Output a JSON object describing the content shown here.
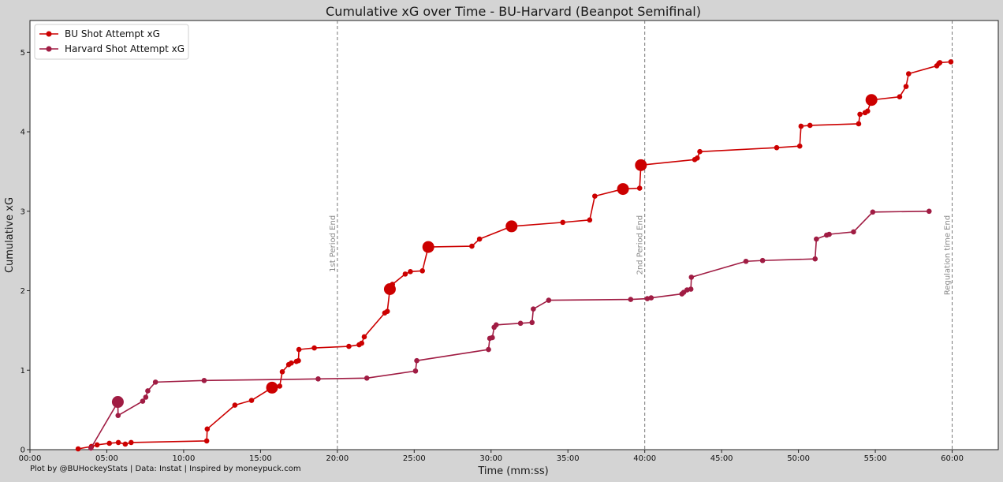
{
  "chart_data": {
    "type": "line",
    "title": "Cumulative xG over Time - BU-Harvard (Beanpot Semifinal)",
    "xlabel": "Time (mm:ss)",
    "ylabel": "Cumulative xG",
    "credit": "Plot by @BUHockeyStats | Data: Instat | Inspired by moneypuck.com",
    "xlim": [
      0,
      3780
    ],
    "ylim": [
      0,
      5.4
    ],
    "x_ticks": [
      {
        "value": 0,
        "label": "00:00"
      },
      {
        "value": 300,
        "label": "05:00"
      },
      {
        "value": 600,
        "label": "10:00"
      },
      {
        "value": 900,
        "label": "15:00"
      },
      {
        "value": 1200,
        "label": "20:00"
      },
      {
        "value": 1500,
        "label": "25:00"
      },
      {
        "value": 1800,
        "label": "30:00"
      },
      {
        "value": 2100,
        "label": "35:00"
      },
      {
        "value": 2400,
        "label": "40:00"
      },
      {
        "value": 2700,
        "label": "45:00"
      },
      {
        "value": 3000,
        "label": "50:00"
      },
      {
        "value": 3300,
        "label": "55:00"
      },
      {
        "value": 3600,
        "label": "60:00"
      }
    ],
    "y_ticks": [
      0,
      1,
      2,
      3,
      4,
      5
    ],
    "grid": false,
    "legend_position": "top-left",
    "annotations": [
      {
        "x": 1200,
        "label": "1st Period End"
      },
      {
        "x": 2400,
        "label": "2nd Period End"
      },
      {
        "x": 3600,
        "label": "Regulation time End"
      }
    ],
    "series": [
      {
        "name": "BU Shot Attempt xG",
        "color": "#cc0000",
        "x_units": "seconds",
        "points": [
          [
            188,
            0.01
          ],
          [
            240,
            0.04
          ],
          [
            262,
            0.06
          ],
          [
            310,
            0.08
          ],
          [
            345,
            0.09
          ],
          [
            372,
            0.07
          ],
          [
            395,
            0.09
          ],
          [
            690,
            0.11
          ],
          [
            692,
            0.26
          ],
          [
            800,
            0.56
          ],
          [
            865,
            0.62
          ],
          [
            945,
            0.78
          ],
          [
            975,
            0.8
          ],
          [
            985,
            0.98
          ],
          [
            1010,
            1.07
          ],
          [
            1020,
            1.09
          ],
          [
            1040,
            1.11
          ],
          [
            1048,
            1.12
          ],
          [
            1050,
            1.26
          ],
          [
            1110,
            1.28
          ],
          [
            1245,
            1.3
          ],
          [
            1285,
            1.32
          ],
          [
            1295,
            1.34
          ],
          [
            1305,
            1.42
          ],
          [
            1385,
            1.72
          ],
          [
            1395,
            1.74
          ],
          [
            1405,
            2.02
          ],
          [
            1415,
            2.08
          ],
          [
            1465,
            2.21
          ],
          [
            1485,
            2.24
          ],
          [
            1532,
            2.25
          ],
          [
            1555,
            2.55
          ],
          [
            1725,
            2.56
          ],
          [
            1755,
            2.65
          ],
          [
            1880,
            2.81
          ],
          [
            2080,
            2.86
          ],
          [
            2185,
            2.89
          ],
          [
            2205,
            3.19
          ],
          [
            2315,
            3.28
          ],
          [
            2380,
            3.29
          ],
          [
            2385,
            3.58
          ],
          [
            2595,
            3.65
          ],
          [
            2605,
            3.67
          ],
          [
            2615,
            3.75
          ],
          [
            2915,
            3.8
          ],
          [
            3005,
            3.82
          ],
          [
            3010,
            4.07
          ],
          [
            3045,
            4.08
          ],
          [
            3235,
            4.1
          ],
          [
            3240,
            4.22
          ],
          [
            3260,
            4.24
          ],
          [
            3270,
            4.26
          ],
          [
            3285,
            4.4
          ],
          [
            3395,
            4.44
          ],
          [
            3420,
            4.57
          ],
          [
            3430,
            4.73
          ],
          [
            3540,
            4.83
          ],
          [
            3548,
            4.86
          ],
          [
            3552,
            4.87
          ],
          [
            3595,
            4.88
          ]
        ],
        "large_markers": [
          [
            945,
            0.78
          ],
          [
            1405,
            2.02
          ],
          [
            1555,
            2.55
          ],
          [
            1880,
            2.81
          ],
          [
            2315,
            3.28
          ],
          [
            2385,
            3.58
          ],
          [
            3285,
            4.4
          ]
        ]
      },
      {
        "name": "Harvard Shot Attempt xG",
        "color": "#a01c43",
        "x_units": "seconds",
        "points": [
          [
            238,
            0.02
          ],
          [
            340,
            0.58
          ],
          [
            342,
            0.59
          ],
          [
            343,
            0.6
          ],
          [
            344,
            0.43
          ],
          [
            440,
            0.61
          ],
          [
            452,
            0.66
          ],
          [
            460,
            0.74
          ],
          [
            490,
            0.85
          ],
          [
            680,
            0.87
          ],
          [
            1125,
            0.89
          ],
          [
            1315,
            0.9
          ],
          [
            1505,
            0.99
          ],
          [
            1510,
            1.12
          ],
          [
            1790,
            1.26
          ],
          [
            1795,
            1.4
          ],
          [
            1805,
            1.41
          ],
          [
            1812,
            1.54
          ],
          [
            1820,
            1.57
          ],
          [
            1915,
            1.59
          ],
          [
            1960,
            1.6
          ],
          [
            1965,
            1.77
          ],
          [
            2025,
            1.88
          ],
          [
            2345,
            1.89
          ],
          [
            2410,
            1.9
          ],
          [
            2425,
            1.91
          ],
          [
            2545,
            1.96
          ],
          [
            2552,
            1.98
          ],
          [
            2565,
            2.01
          ],
          [
            2580,
            2.02
          ],
          [
            2582,
            2.17
          ],
          [
            2795,
            2.37
          ],
          [
            2860,
            2.38
          ],
          [
            3065,
            2.4
          ],
          [
            3070,
            2.65
          ],
          [
            3110,
            2.7
          ],
          [
            3120,
            2.71
          ],
          [
            3215,
            2.74
          ],
          [
            3290,
            2.99
          ],
          [
            3510,
            3.0
          ]
        ],
        "large_markers": [
          [
            343,
            0.6
          ]
        ]
      }
    ]
  }
}
